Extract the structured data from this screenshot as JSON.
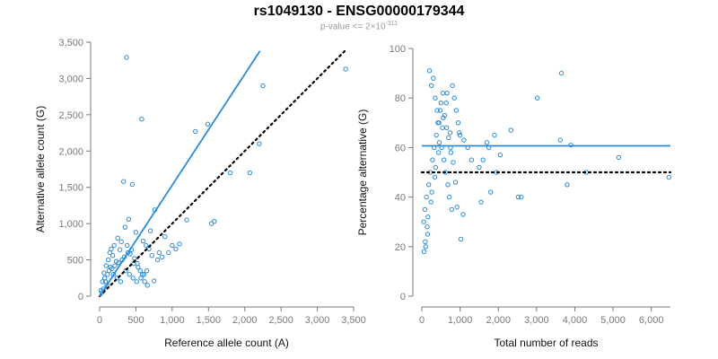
{
  "header": {
    "title": "rs1049130 - ENSG00000179344",
    "subtitle_prefix": "p-value <= 2×10",
    "subtitle_exponent": "-311"
  },
  "colors": {
    "points": "#2b8bd8",
    "fit_line": "#2b8bd8",
    "reference_line": "#000000",
    "axis": "#7a7a7a"
  },
  "chart_data": [
    {
      "type": "scatter",
      "xlabel": "Reference allele count (A)",
      "ylabel": "Alternative allele count (G)",
      "xlim": [
        0,
        3500
      ],
      "ylim": [
        0,
        3500
      ],
      "xticks": [
        0,
        500,
        1000,
        1500,
        2000,
        2500,
        3000,
        3500
      ],
      "yticks": [
        0,
        500,
        1000,
        1500,
        2000,
        2500,
        3000,
        3500
      ],
      "xtick_labels": [
        "0",
        "500",
        "1,000",
        "1,500",
        "2,000",
        "2,500",
        "3,000",
        "3,500"
      ],
      "ytick_labels": [
        "0",
        "500",
        "1,000",
        "1,500",
        "2,000",
        "2,500",
        "3,000",
        "3,500"
      ],
      "grid": false,
      "points_x": [
        370,
        580,
        1320,
        1490,
        2250,
        2200,
        2070,
        3390,
        330,
        450,
        1540,
        1580,
        760,
        1000,
        750,
        1800,
        1200,
        900,
        600,
        700,
        400,
        350,
        500,
        820,
        250,
        300,
        160,
        200,
        280,
        120,
        90,
        60,
        40,
        20,
        140,
        180,
        230,
        380,
        420,
        480,
        520,
        560,
        640,
        680,
        720,
        800,
        860,
        950,
        1050,
        1100,
        110,
        130,
        150,
        170,
        210,
        260,
        310,
        340,
        390,
        440,
        470,
        530,
        590,
        620,
        660,
        100,
        80,
        70,
        50,
        30,
        190,
        240,
        290,
        360,
        410,
        460,
        510,
        570,
        610,
        650
      ],
      "points_y": [
        3290,
        2440,
        2270,
        2370,
        2900,
        2100,
        1700,
        3130,
        1580,
        1540,
        1000,
        1030,
        1190,
        700,
        210,
        1700,
        1050,
        820,
        760,
        900,
        1060,
        950,
        880,
        600,
        800,
        750,
        650,
        700,
        640,
        500,
        420,
        320,
        200,
        80,
        600,
        560,
        480,
        700,
        580,
        520,
        450,
        350,
        700,
        650,
        560,
        500,
        540,
        600,
        650,
        720,
        300,
        350,
        400,
        380,
        420,
        460,
        500,
        540,
        600,
        640,
        450,
        400,
        300,
        200,
        150,
        150,
        200,
        250,
        100,
        50,
        300,
        250,
        200,
        350,
        300,
        250,
        200,
        250,
        300,
        350
      ],
      "fit_line": {
        "x": [
          0,
          2210
        ],
        "y": [
          0,
          3380
        ]
      },
      "reference_line": {
        "x": [
          0,
          3380
        ],
        "y": [
          0,
          3380
        ]
      }
    },
    {
      "type": "scatter",
      "xlabel": "Total number of reads",
      "ylabel": "Percentage alternative (G)",
      "xlim": [
        0,
        6500
      ],
      "ylim": [
        0,
        100
      ],
      "xticks": [
        0,
        1000,
        2000,
        3000,
        4000,
        5000,
        6000
      ],
      "yticks": [
        0,
        20,
        40,
        60,
        80,
        100
      ],
      "xtick_labels": [
        "0",
        "1,000",
        "2,000",
        "3,000",
        "4,000",
        "5,000",
        "6,000"
      ],
      "ytick_labels": [
        "0",
        "20",
        "40",
        "60",
        "80",
        "100"
      ],
      "grid": false,
      "points_x": [
        3650,
        3020,
        2600,
        2520,
        1700,
        1900,
        1950,
        2050,
        2330,
        3620,
        3900,
        3800,
        5150,
        6460,
        4300,
        1500,
        1600,
        1750,
        1800,
        1550,
        1300,
        1200,
        1100,
        1000,
        950,
        900,
        850,
        1020,
        1080,
        200,
        250,
        300,
        350,
        400,
        450,
        500,
        550,
        600,
        650,
        700,
        750,
        800,
        100,
        150,
        50,
        80,
        120,
        180,
        220,
        280,
        320,
        380,
        420,
        480,
        520,
        580,
        620,
        680,
        720,
        780,
        60,
        90,
        140,
        160,
        240,
        260,
        340,
        360,
        440,
        460,
        540,
        560,
        640,
        660,
        740,
        760,
        820,
        880,
        920,
        980
      ],
      "points_y": [
        90,
        80,
        40,
        40,
        62,
        65,
        50,
        57,
        67,
        63,
        61,
        45,
        56,
        48,
        50,
        52,
        55,
        60,
        42,
        38,
        55,
        60,
        63,
        65,
        70,
        75,
        80,
        23,
        33,
        91,
        85,
        88,
        80,
        75,
        70,
        78,
        82,
        73,
        68,
        64,
        60,
        85,
        20,
        25,
        30,
        35,
        40,
        45,
        50,
        55,
        60,
        65,
        70,
        75,
        60,
        55,
        50,
        45,
        40,
        35,
        18,
        22,
        28,
        32,
        38,
        42,
        48,
        52,
        58,
        62,
        68,
        72,
        78,
        82,
        66,
        58,
        54,
        46,
        36,
        66
      ],
      "fit_line": {
        "x": [
          0,
          6500
        ],
        "y": [
          60.7,
          60.7
        ]
      },
      "reference_line": {
        "x": [
          0,
          6500
        ],
        "y": [
          50,
          50
        ]
      }
    }
  ]
}
